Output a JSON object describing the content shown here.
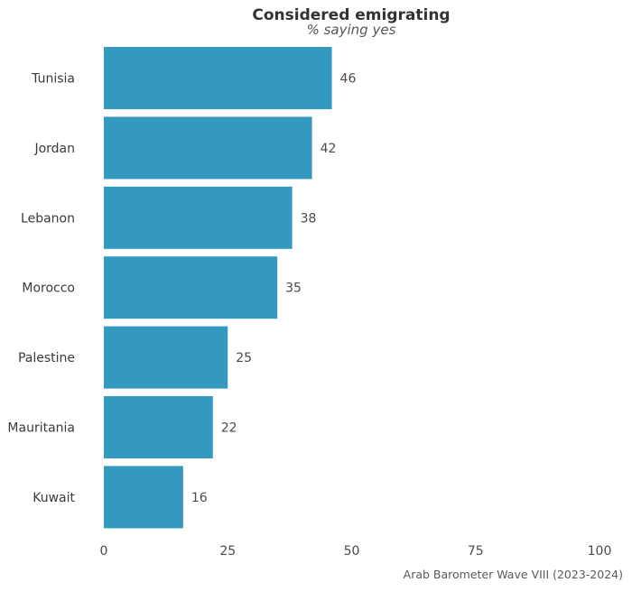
{
  "chart_data": {
    "type": "bar",
    "orientation": "horizontal",
    "title": "Considered emigrating",
    "subtitle": "% saying yes",
    "categories": [
      "Tunisia",
      "Jordan",
      "Lebanon",
      "Morocco",
      "Palestine",
      "Mauritania",
      "Kuwait"
    ],
    "values": [
      46,
      42,
      38,
      35,
      25,
      22,
      16
    ],
    "xlim": [
      0,
      100
    ],
    "xticks": [
      0,
      25,
      50,
      75,
      100
    ],
    "grid": false,
    "bar_color": "#3399c1",
    "caption": "Arab Barometer Wave VIII (2023-2024)"
  }
}
